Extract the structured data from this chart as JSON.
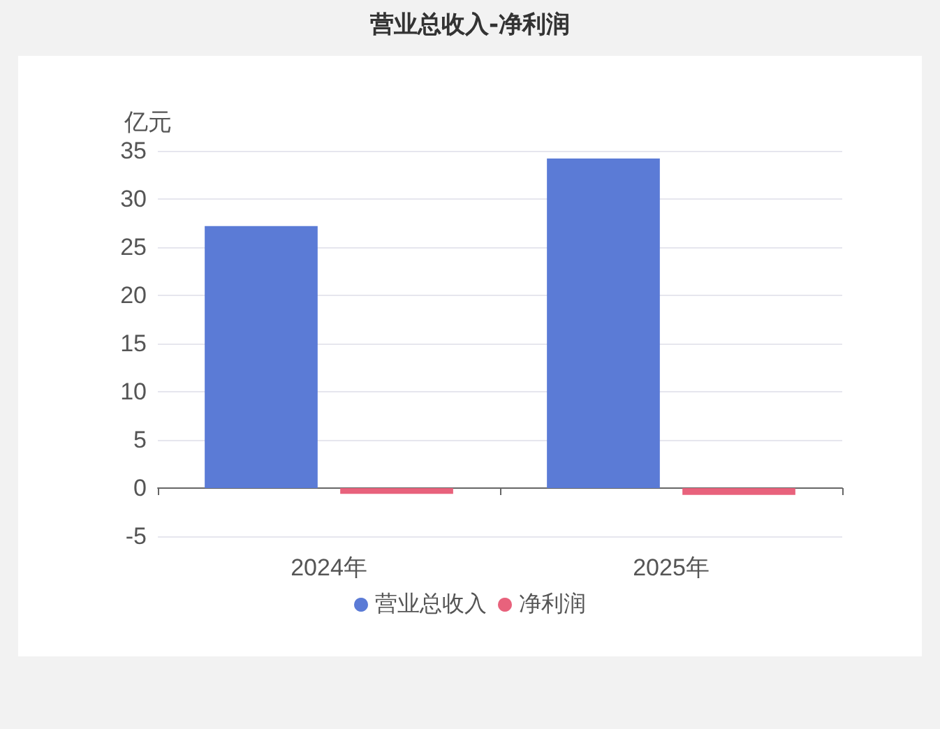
{
  "chart_data": {
    "type": "bar",
    "title": "营业总收入-净利润",
    "ylabel": "亿元",
    "categories": [
      "2024年",
      "2025年"
    ],
    "series": [
      {
        "name": "营业总收入",
        "color": "#5b7bd6",
        "values": [
          27.2,
          34.2
        ]
      },
      {
        "name": "净利润",
        "color": "#e8627c",
        "values": [
          -0.6,
          -0.7
        ]
      }
    ],
    "ylim": [
      -5,
      35
    ],
    "yticks": [
      -5,
      0,
      5,
      10,
      15,
      20,
      25,
      30,
      35
    ],
    "grid": "y",
    "legend": "bottom"
  }
}
